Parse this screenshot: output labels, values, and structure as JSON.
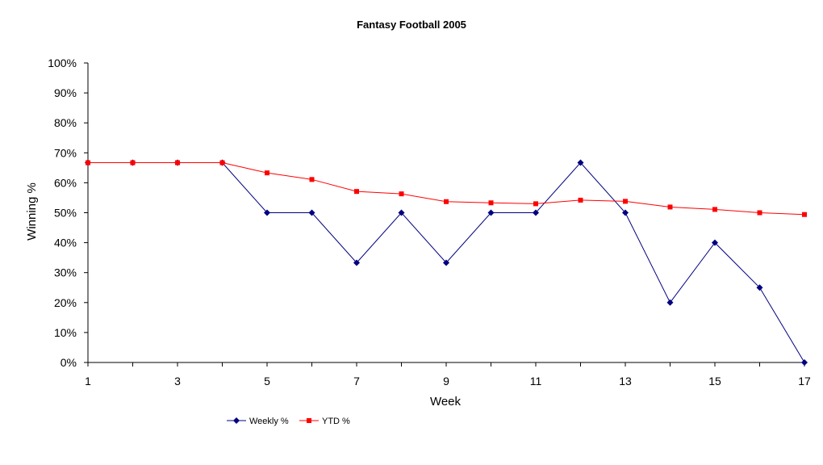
{
  "chart_data": {
    "type": "line",
    "title": "Fantasy Football 2005",
    "xlabel": "Week",
    "ylabel": "Winning %",
    "x": [
      1,
      2,
      3,
      4,
      5,
      6,
      7,
      8,
      9,
      10,
      11,
      12,
      13,
      14,
      15,
      16,
      17
    ],
    "x_tick_labels": [
      "1",
      "3",
      "5",
      "7",
      "9",
      "11",
      "13",
      "15",
      "17"
    ],
    "x_tick_values": [
      1,
      3,
      5,
      7,
      9,
      11,
      13,
      15,
      17
    ],
    "xlim": [
      1,
      17
    ],
    "ylim": [
      0,
      1
    ],
    "y_tick_values": [
      0,
      0.1,
      0.2,
      0.3,
      0.4,
      0.5,
      0.6,
      0.7,
      0.8,
      0.9,
      1.0
    ],
    "y_tick_labels": [
      "0%",
      "10%",
      "20%",
      "30%",
      "40%",
      "50%",
      "60%",
      "70%",
      "80%",
      "90%",
      "100%"
    ],
    "grid": false,
    "legend_position": "bottom",
    "series": [
      {
        "name": "Weekly %",
        "color": "#000080",
        "marker": "diamond",
        "values": [
          0.667,
          0.667,
          0.667,
          0.667,
          0.5,
          0.5,
          0.333,
          0.5,
          0.333,
          0.5,
          0.5,
          0.667,
          0.5,
          0.2,
          0.4,
          0.25,
          0.0
        ]
      },
      {
        "name": "YTD %",
        "color": "#ff0000",
        "marker": "square",
        "values": [
          0.667,
          0.667,
          0.667,
          0.667,
          0.633,
          0.611,
          0.571,
          0.563,
          0.537,
          0.533,
          0.53,
          0.542,
          0.538,
          0.519,
          0.511,
          0.5,
          0.494
        ]
      }
    ]
  }
}
